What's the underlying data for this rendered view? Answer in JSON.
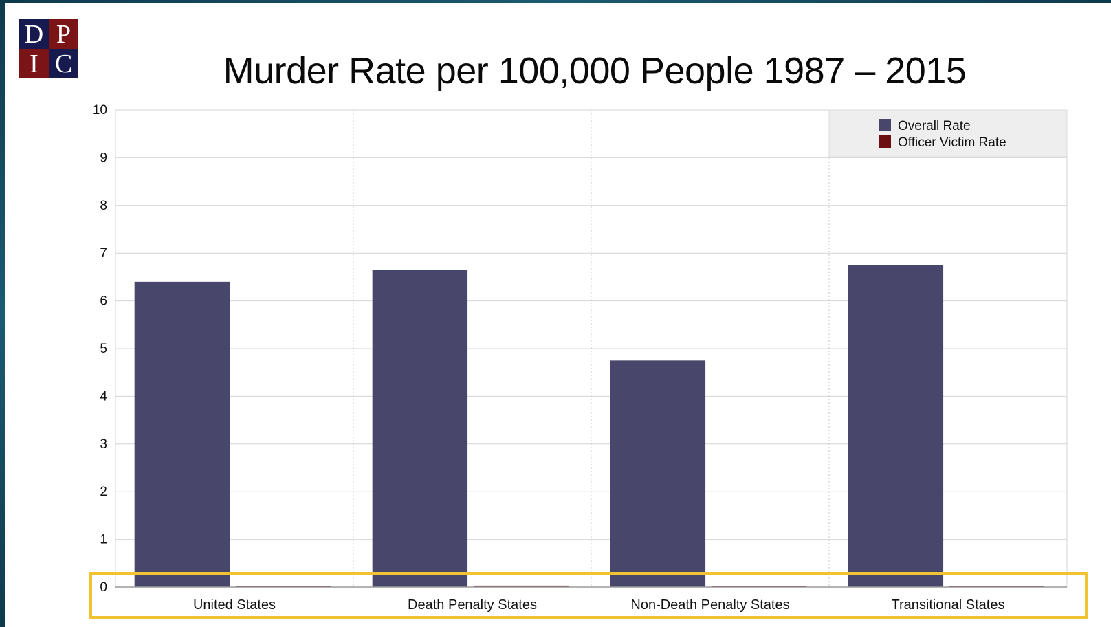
{
  "logo": {
    "letters": [
      "D",
      "P",
      "I",
      "C"
    ]
  },
  "chart_data": {
    "type": "bar",
    "title": "Murder Rate per 100,000 People 1987 – 2015",
    "xlabel": "",
    "ylabel": "",
    "categories": [
      "United States",
      "Death Penalty States",
      "Non-Death Penalty States",
      "Transitional States"
    ],
    "series": [
      {
        "name": "Overall Rate",
        "color": "#48466b",
        "values": [
          6.4,
          6.65,
          4.75,
          6.75
        ]
      },
      {
        "name": "Officer Victim Rate",
        "color": "#6b0f12",
        "values": [
          0.02,
          0.03,
          0.02,
          0.02
        ]
      }
    ],
    "ylim": [
      0,
      10
    ],
    "yticks": [
      "0",
      "1",
      "2",
      "3",
      "4",
      "5",
      "6",
      "7",
      "8",
      "9",
      "10"
    ],
    "grid": true,
    "legend_position": "top-right",
    "annotation": "highlight box around zero baseline and category labels"
  }
}
